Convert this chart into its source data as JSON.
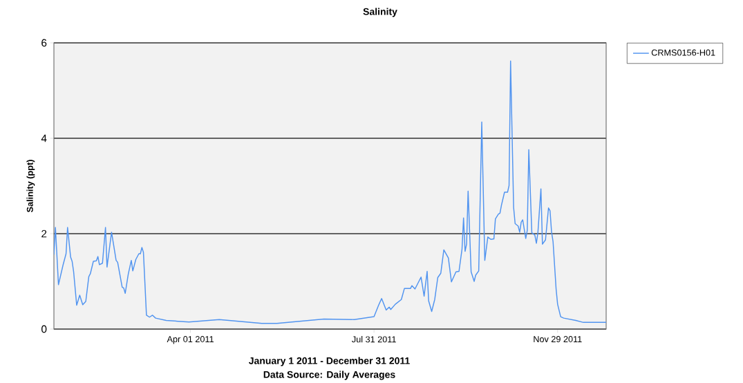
{
  "chart_data": {
    "type": "line",
    "title": "Salinity",
    "ylabel": "Salinity (ppt)",
    "annotations": [
      "January 1 2011 - December 31 2011",
      "Data Source: Daily Averages"
    ],
    "xlim": [
      "2011-01-01",
      "2011-12-31"
    ],
    "xticks": [
      {
        "value": "2011-04-01",
        "label": "Apr 01 2011"
      },
      {
        "value": "2011-07-31",
        "label": "Jul 31 2011"
      },
      {
        "value": "2011-11-29",
        "label": "Nov 29 2011"
      }
    ],
    "ylim": [
      0,
      6
    ],
    "yticks": [
      0,
      2,
      4,
      6
    ],
    "grid": "y",
    "legend": "top right",
    "x": [
      "2011-01-01",
      "2011-01-02",
      "2011-01-04",
      "2011-01-07",
      "2011-01-09",
      "2011-01-10",
      "2011-01-12",
      "2011-01-13",
      "2011-01-14",
      "2011-01-16",
      "2011-01-18",
      "2011-01-20",
      "2011-01-22",
      "2011-01-24",
      "2011-01-25",
      "2011-01-27",
      "2011-01-29",
      "2011-01-30",
      "2011-01-31",
      "2011-02-02",
      "2011-02-04",
      "2011-02-05",
      "2011-02-08",
      "2011-02-11",
      "2011-02-12",
      "2011-02-15",
      "2011-02-16",
      "2011-02-17",
      "2011-02-19",
      "2011-02-21",
      "2011-02-22",
      "2011-02-24",
      "2011-02-26",
      "2011-02-27",
      "2011-02-28",
      "2011-03-01",
      "2011-03-03",
      "2011-03-05",
      "2011-03-07",
      "2011-03-09",
      "2011-03-16",
      "2011-03-31",
      "2011-04-20",
      "2011-05-18",
      "2011-05-28",
      "2011-06-28",
      "2011-07-18",
      "2011-07-31",
      "2011-08-03",
      "2011-08-05",
      "2011-08-08",
      "2011-08-10",
      "2011-08-11",
      "2011-08-14",
      "2011-08-18",
      "2011-08-20",
      "2011-08-24",
      "2011-08-25",
      "2011-08-27",
      "2011-08-31",
      "2011-09-02",
      "2011-09-04",
      "2011-09-05",
      "2011-09-07",
      "2011-09-09",
      "2011-09-11",
      "2011-09-13",
      "2011-09-15",
      "2011-09-18",
      "2011-09-20",
      "2011-09-23",
      "2011-09-25",
      "2011-09-27",
      "2011-09-28",
      "2011-09-29",
      "2011-09-30",
      "2011-10-01",
      "2011-10-03",
      "2011-10-05",
      "2011-10-06",
      "2011-10-08",
      "2011-10-10",
      "2011-10-12",
      "2011-10-14",
      "2011-10-16",
      "2011-10-18",
      "2011-10-19",
      "2011-10-21",
      "2011-10-22",
      "2011-10-23",
      "2011-10-25",
      "2011-10-27",
      "2011-10-28",
      "2011-10-29",
      "2011-10-31",
      "2011-11-01",
      "2011-11-03",
      "2011-11-04",
      "2011-11-05",
      "2011-11-06",
      "2011-11-08",
      "2011-11-09",
      "2011-11-10",
      "2011-11-12",
      "2011-11-14",
      "2011-11-15",
      "2011-11-16",
      "2011-11-18",
      "2011-11-19",
      "2011-11-21",
      "2011-11-23",
      "2011-11-24",
      "2011-11-25",
      "2011-11-26",
      "2011-11-28",
      "2011-11-29",
      "2011-12-01",
      "2011-12-03",
      "2011-12-11",
      "2011-12-16",
      "2011-12-31"
    ],
    "series": [
      {
        "name": "CRMS0156-H01",
        "color": "#5194f0",
        "values": [
          1.56,
          2.13,
          0.93,
          1.34,
          1.58,
          2.13,
          1.51,
          1.42,
          1.2,
          0.5,
          0.71,
          0.51,
          0.58,
          1.1,
          1.16,
          1.42,
          1.43,
          1.52,
          1.35,
          1.38,
          2.13,
          1.3,
          2.03,
          1.44,
          1.4,
          0.88,
          0.86,
          0.75,
          1.15,
          1.44,
          1.22,
          1.46,
          1.58,
          1.58,
          1.71,
          1.61,
          0.29,
          0.25,
          0.29,
          0.23,
          0.18,
          0.15,
          0.2,
          0.12,
          0.12,
          0.21,
          0.2,
          0.26,
          0.5,
          0.64,
          0.4,
          0.46,
          0.41,
          0.52,
          0.62,
          0.85,
          0.85,
          0.91,
          0.84,
          1.09,
          0.69,
          1.21,
          0.59,
          0.37,
          0.62,
          1.08,
          1.17,
          1.66,
          1.49,
          0.99,
          1.2,
          1.21,
          1.68,
          2.33,
          1.63,
          1.78,
          2.89,
          1.2,
          1.0,
          1.13,
          1.22,
          4.34,
          1.44,
          1.93,
          1.88,
          1.89,
          2.31,
          2.41,
          2.43,
          2.6,
          2.87,
          2.87,
          3.01,
          5.62,
          2.55,
          2.21,
          2.16,
          2.03,
          2.24,
          2.29,
          1.9,
          2.07,
          3.76,
          2.02,
          1.97,
          1.8,
          2.02,
          2.94,
          1.78,
          1.87,
          2.54,
          2.48,
          2.04,
          1.83,
          0.84,
          0.52,
          0.26,
          0.23,
          0.18,
          0.14,
          0.14
        ]
      }
    ]
  }
}
